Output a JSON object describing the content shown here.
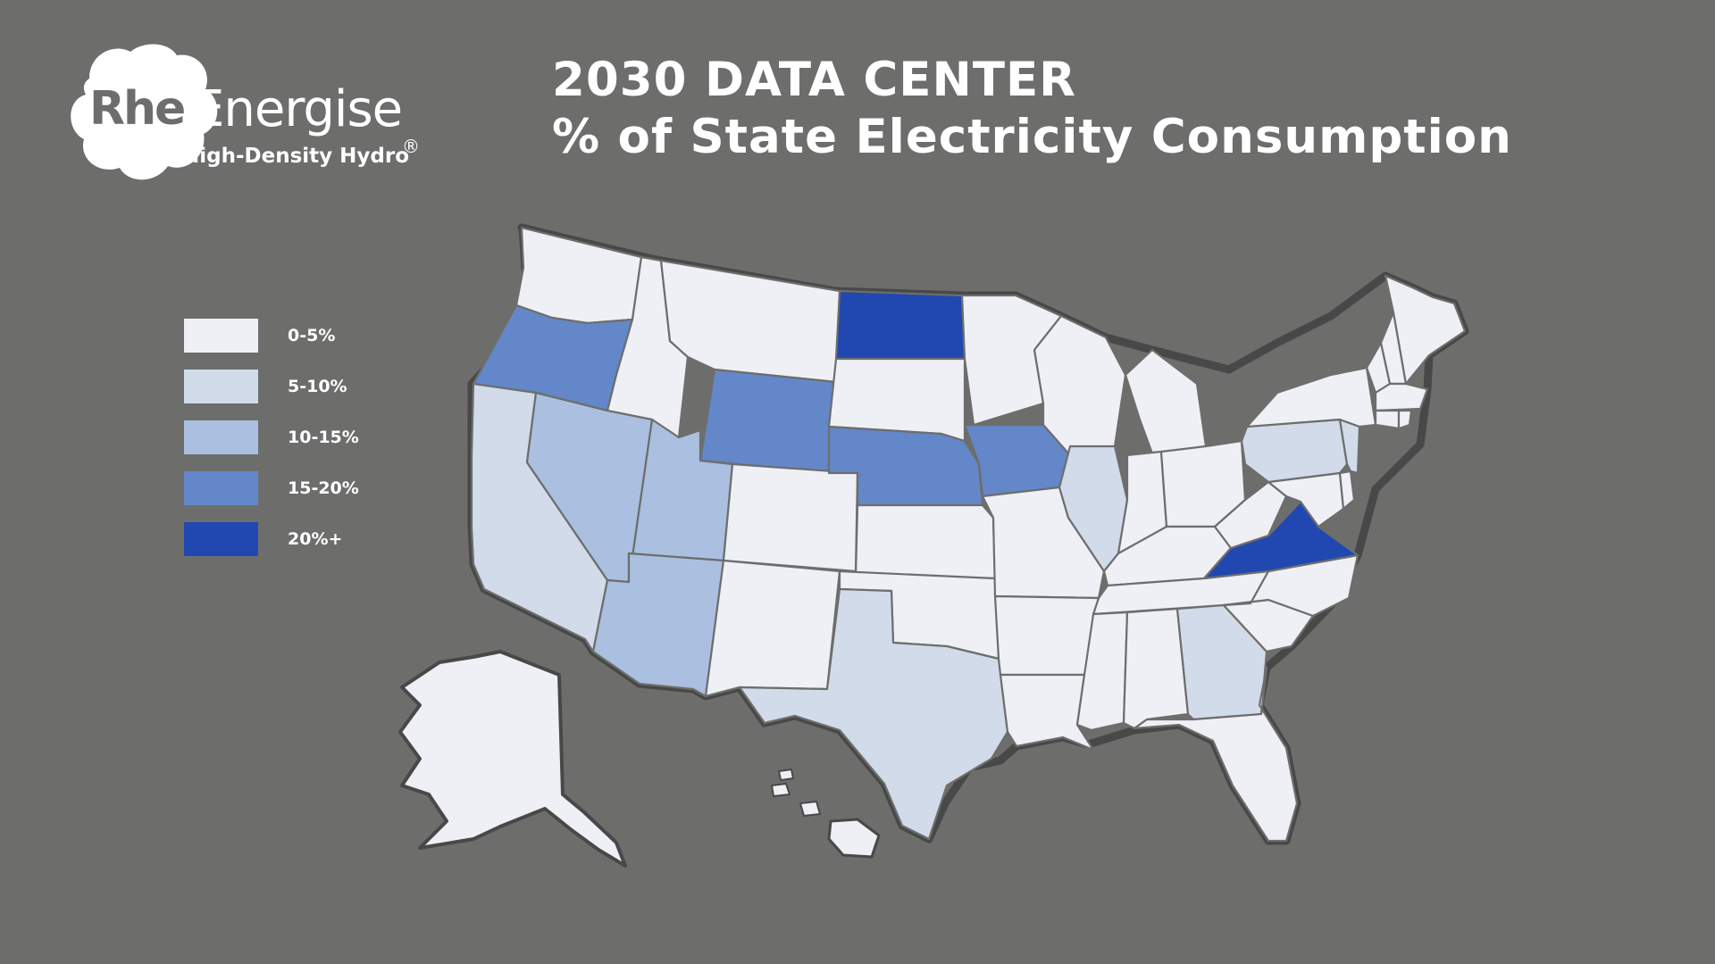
{
  "logo": {
    "brand_a": "Rhe",
    "brand_b": "Energise",
    "tagline": "High-Density Hydro",
    "registered_mark": "®"
  },
  "title": {
    "line1": "2030 DATA CENTER",
    "line2": "% of State Electricity Consumption"
  },
  "colors": {
    "background": "#6d6e6c",
    "bin_0_5": "#eff0f6",
    "bin_5_10": "#d1dbea",
    "bin_10_15": "#abbfe0",
    "bin_15_20": "#6387c8",
    "bin_20_plus": "#2048b0"
  },
  "legend": [
    {
      "label": "0-5%",
      "bin": "bin_0_5"
    },
    {
      "label": "5-10%",
      "bin": "bin_5_10"
    },
    {
      "label": "10-15%",
      "bin": "bin_10_15"
    },
    {
      "label": "15-20%",
      "bin": "bin_15_20"
    },
    {
      "label": "20%+",
      "bin": "bin_20_plus"
    }
  ],
  "map_data": {
    "type": "choropleth",
    "region": "United States",
    "bins": [
      "0-5%",
      "5-10%",
      "10-15%",
      "15-20%",
      "20%+"
    ],
    "states": {
      "North Dakota": "20%+",
      "Virginia": "20%+",
      "Oregon": "15-20%",
      "Wyoming": "15-20%",
      "Nebraska": "15-20%",
      "Iowa": "15-20%",
      "Nevada": "10-15%",
      "Utah": "10-15%",
      "Arizona": "10-15%",
      "California": "5-10%",
      "Texas": "5-10%",
      "Illinois": "5-10%",
      "Georgia": "5-10%",
      "Pennsylvania": "5-10%",
      "New Jersey": "5-10%",
      "Washington": "0-5%",
      "Idaho": "0-5%",
      "Montana": "0-5%",
      "Colorado": "0-5%",
      "New Mexico": "0-5%",
      "South Dakota": "0-5%",
      "Kansas": "0-5%",
      "Oklahoma": "0-5%",
      "Minnesota": "0-5%",
      "Missouri": "0-5%",
      "Arkansas": "0-5%",
      "Louisiana": "0-5%",
      "Wisconsin": "0-5%",
      "Michigan": "0-5%",
      "Indiana": "0-5%",
      "Ohio": "0-5%",
      "Kentucky": "0-5%",
      "Tennessee": "0-5%",
      "Mississippi": "0-5%",
      "Alabama": "0-5%",
      "Florida": "0-5%",
      "South Carolina": "0-5%",
      "North Carolina": "0-5%",
      "West Virginia": "0-5%",
      "Maryland": "0-5%",
      "Delaware": "0-5%",
      "New York": "0-5%",
      "Vermont": "0-5%",
      "New Hampshire": "0-5%",
      "Maine": "0-5%",
      "Massachusetts": "0-5%",
      "Connecticut": "0-5%",
      "Rhode Island": "0-5%",
      "Alaska": "0-5%",
      "Hawaii": "0-5%"
    }
  }
}
